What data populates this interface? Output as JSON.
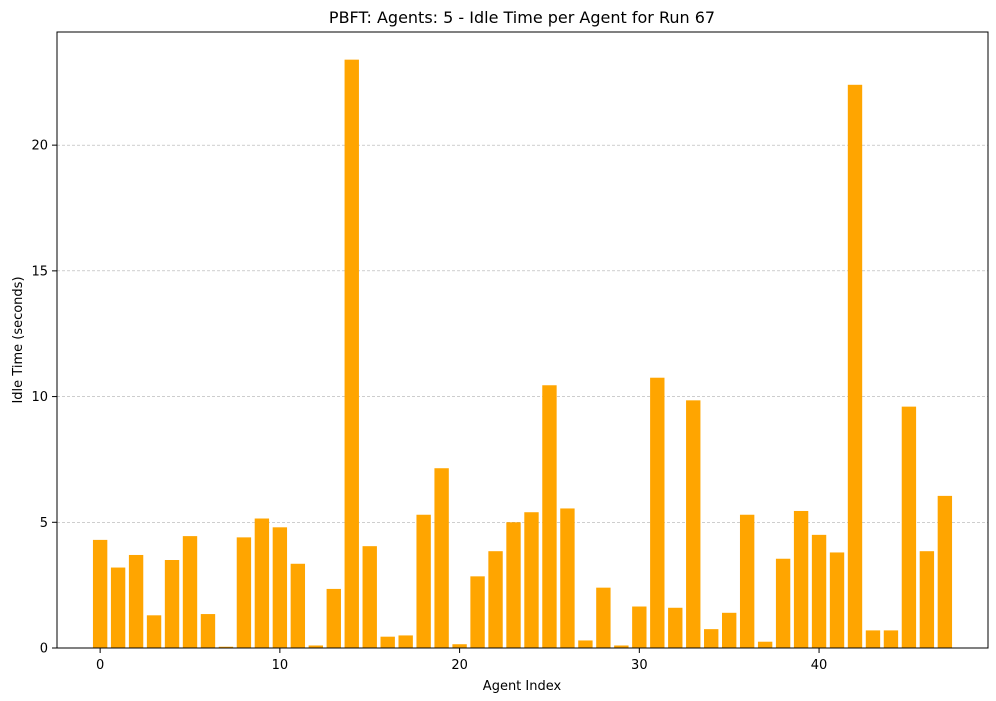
{
  "chart_data": {
    "type": "bar",
    "title": "PBFT: Agents: 5 - Idle Time per Agent for Run 67",
    "xlabel": "Agent Index",
    "ylabel": "Idle Time (seconds)",
    "bar_color": "#FFA500",
    "grid": {
      "axis": "y",
      "style": "dashed",
      "color": "#b0b0b0"
    },
    "xlim": [
      -2.4,
      49.4
    ],
    "ylim": [
      0,
      24.5
    ],
    "x_ticks": [
      0,
      10,
      20,
      30,
      40
    ],
    "y_ticks": [
      0,
      5,
      10,
      15,
      20
    ],
    "x": [
      0,
      1,
      2,
      3,
      4,
      5,
      6,
      7,
      8,
      9,
      10,
      11,
      12,
      13,
      14,
      15,
      16,
      17,
      18,
      19,
      20,
      21,
      22,
      23,
      24,
      25,
      26,
      27,
      28,
      29,
      30,
      31,
      32,
      33,
      34,
      35,
      36,
      37,
      38,
      39,
      40,
      41,
      42,
      43,
      44,
      45,
      46,
      47
    ],
    "values": [
      4.3,
      3.2,
      3.7,
      1.3,
      3.5,
      4.45,
      1.35,
      0.05,
      4.4,
      5.15,
      4.8,
      3.35,
      0.1,
      2.35,
      23.4,
      4.05,
      0.45,
      0.5,
      5.3,
      7.15,
      0.15,
      2.85,
      3.85,
      5.0,
      5.4,
      10.45,
      5.55,
      0.3,
      2.4,
      0.1,
      1.65,
      10.75,
      1.6,
      9.85,
      0.75,
      1.4,
      5.3,
      0.25,
      3.55,
      5.45,
      4.5,
      3.8,
      22.4,
      0.7,
      0.7,
      9.6,
      3.85,
      6.05
    ]
  }
}
